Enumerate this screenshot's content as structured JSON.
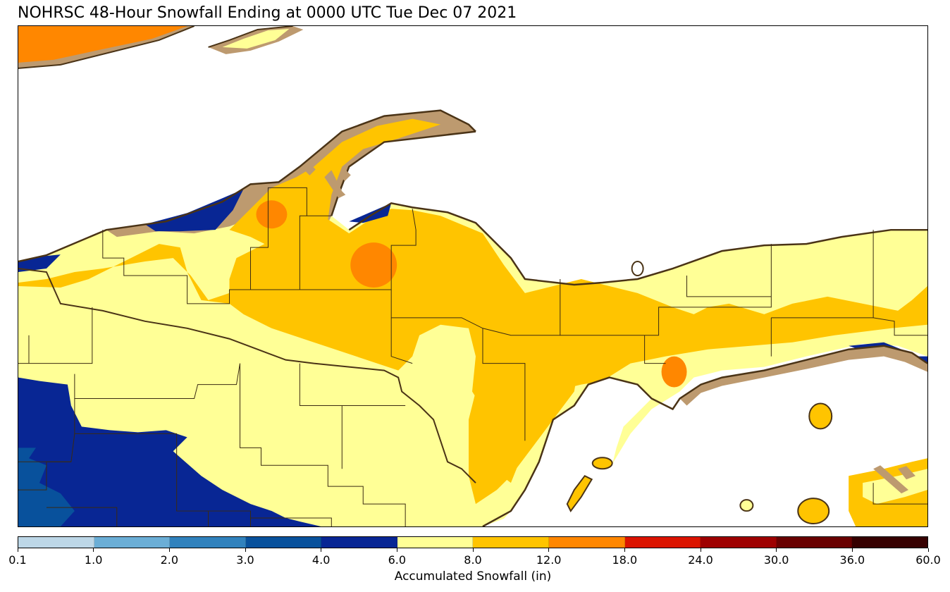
{
  "title": "NOHRSC 48-Hour Snowfall Ending at 0000 UTC Tue Dec 07 2021",
  "colorbar": {
    "label": "Accumulated Snowfall (in)",
    "ticks": [
      "0.1",
      "1.0",
      "2.0",
      "3.0",
      "4.0",
      "6.0",
      "8.0",
      "12.0",
      "18.0",
      "24.0",
      "30.0",
      "36.0",
      "60.0"
    ],
    "colors": [
      "#bdd7e7",
      "#6baed6",
      "#3182bd",
      "#08519c",
      "#082694",
      "#ffff96",
      "#ffc400",
      "#ff8700",
      "#db1400",
      "#9e0000",
      "#690000",
      "#360000"
    ]
  },
  "map": {
    "land_colors": {
      "water": "#ffffff",
      "trace": "#bd9a6f",
      "coastline": "#4a3316",
      "border": "#3a2a12"
    }
  }
}
